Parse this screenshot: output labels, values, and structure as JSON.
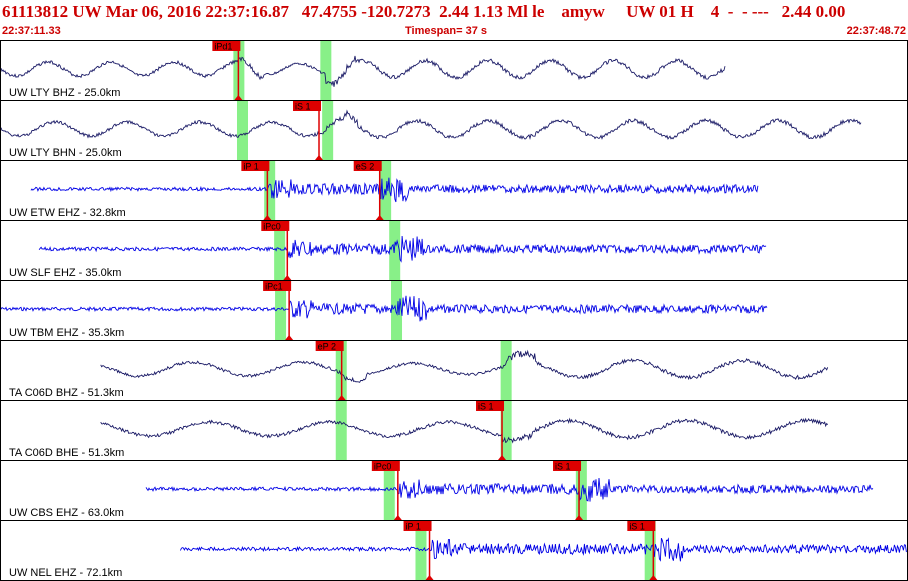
{
  "header": {
    "title": "61113812 UW Mar 06, 2016 22:37:16.87   47.4755 -120.7273  2.44 1.13 Ml le    amyw     UW 01 H    4  -  - ---   2.44 0.00",
    "start_time": "22:37:11.33",
    "timespan": "Timespan=  37 s",
    "end_time": "22:37:48.72"
  },
  "colors": {
    "title": "#cc0000",
    "trace_dark": "#1a1a66",
    "trace_blue": "#0000e6",
    "pick_box": "#dd0000",
    "pick_window": "#88f088",
    "panel_border": "#000000"
  },
  "traces": [
    {
      "label": "UW LTY BHZ - 25.0km",
      "color": "dark",
      "start": 0.0,
      "end": 0.8,
      "picks": [
        {
          "label": "iPd1",
          "pos": 0.262
        }
      ],
      "windows": [
        0.262,
        0.358
      ]
    },
    {
      "label": "UW LTY BHN - 25.0km",
      "color": "dark",
      "start": 0.0,
      "end": 0.95,
      "picks": [
        {
          "label": "iS 1",
          "pos": 0.351
        }
      ],
      "windows": [
        0.266,
        0.36
      ]
    },
    {
      "label": "UW ETW EHZ - 32.8km",
      "color": "blue",
      "start": 0.033,
      "end": 0.836,
      "picks": [
        {
          "label": "iP 1",
          "pos": 0.294
        },
        {
          "label": "eS 2",
          "pos": 0.418
        }
      ],
      "windows": [
        0.296,
        0.424
      ]
    },
    {
      "label": "UW SLF EHZ - 35.0km",
      "color": "blue",
      "start": 0.042,
      "end": 0.845,
      "picks": [
        {
          "label": "iPc0",
          "pos": 0.316
        }
      ],
      "windows": [
        0.307,
        0.434
      ]
    },
    {
      "label": "UW TBM EHZ - 35.3km",
      "color": "blue",
      "start": 0.0,
      "end": 0.846,
      "picks": [
        {
          "label": "iPc1",
          "pos": 0.318
        }
      ],
      "windows": [
        0.308,
        0.436
      ]
    },
    {
      "label": "TA C06D BHZ - 51.3km",
      "color": "dark",
      "start": 0.11,
      "end": 0.913,
      "picks": [
        {
          "label": "eP 2",
          "pos": 0.376
        }
      ],
      "windows": [
        0.375,
        0.557
      ]
    },
    {
      "label": "TA C06D BHE - 51.3km",
      "color": "dark",
      "start": 0.11,
      "end": 0.913,
      "picks": [
        {
          "label": "iS 1",
          "pos": 0.553
        }
      ],
      "windows": [
        0.375,
        0.557
      ]
    },
    {
      "label": "UW CBS EHZ - 63.0km",
      "color": "blue",
      "start": 0.16,
      "end": 0.963,
      "picks": [
        {
          "label": "iPc0",
          "pos": 0.438
        },
        {
          "label": "iS 1",
          "pos": 0.638
        }
      ],
      "windows": [
        0.428,
        0.64
      ]
    },
    {
      "label": "UW NEL EHZ - 72.1km",
      "color": "blue",
      "start": 0.198,
      "end": 1.0,
      "picks": [
        {
          "label": "iP 1",
          "pos": 0.473
        },
        {
          "label": "iS 1",
          "pos": 0.72
        }
      ],
      "windows": [
        0.463,
        0.716
      ]
    }
  ]
}
